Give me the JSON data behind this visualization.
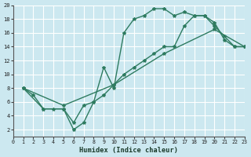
{
  "background_color": "#cce8f0",
  "grid_color": "#b8dce8",
  "line_color": "#2e7b60",
  "line1_x": [
    1,
    2,
    3,
    4,
    5,
    6,
    7,
    8,
    9,
    10,
    11,
    12,
    13,
    14,
    15,
    16,
    17,
    18,
    19,
    20,
    21,
    22,
    23
  ],
  "line1_y": [
    8,
    7,
    5,
    5,
    5,
    2,
    3,
    6,
    11,
    8,
    16,
    18,
    18.5,
    19.5,
    19.5,
    18.5,
    19,
    18.5,
    18.5,
    17,
    15.5,
    14,
    14
  ],
  "line2_x": [
    1,
    3,
    5,
    6,
    7,
    8,
    9,
    10,
    11,
    12,
    13,
    14,
    15,
    16,
    17,
    18,
    19,
    20,
    21,
    22,
    23
  ],
  "line2_y": [
    8,
    5,
    5,
    3,
    5.5,
    6,
    7,
    8.5,
    10,
    11,
    12,
    13,
    14,
    14,
    17,
    18.5,
    18.5,
    17.5,
    15,
    14,
    14
  ],
  "line3_x": [
    1,
    5,
    10,
    15,
    20,
    23
  ],
  "line3_y": [
    8,
    5.5,
    8.5,
    13,
    16.5,
    14
  ],
  "xlabel": "Humidex (Indice chaleur)",
  "xlim": [
    0,
    23
  ],
  "ylim": [
    1,
    20
  ],
  "xticks": [
    0,
    1,
    2,
    3,
    4,
    5,
    6,
    7,
    8,
    9,
    10,
    11,
    12,
    13,
    14,
    15,
    16,
    17,
    18,
    19,
    20,
    21,
    22,
    23
  ],
  "yticks": [
    2,
    4,
    6,
    8,
    10,
    12,
    14,
    16,
    18,
    20
  ]
}
